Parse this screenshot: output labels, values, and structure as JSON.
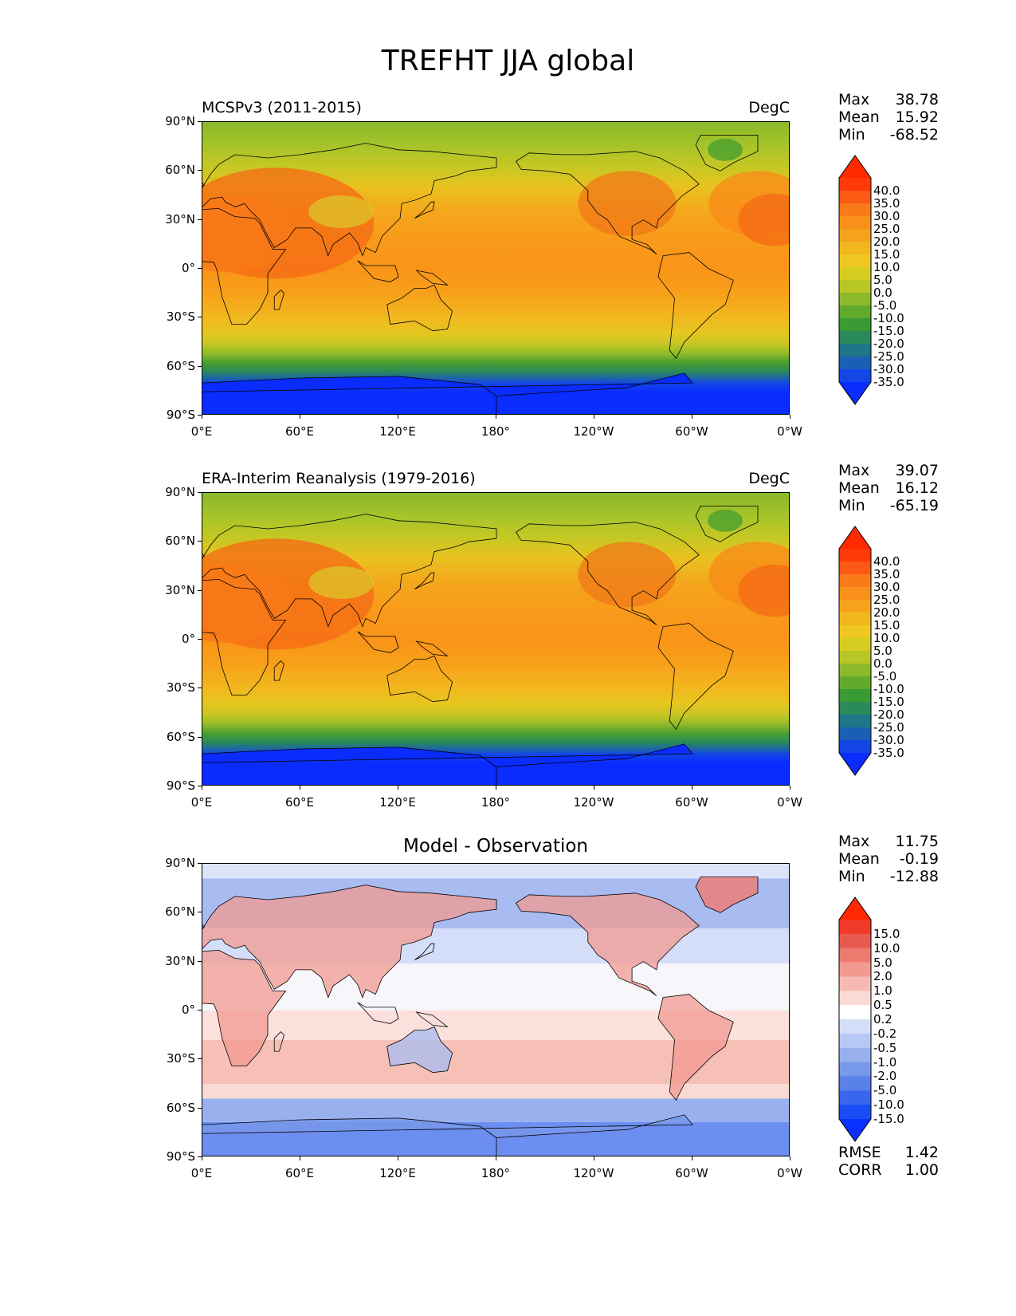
{
  "suptitle": "TREFHT JJA global",
  "xticks": [
    "0°E",
    "60°E",
    "120°E",
    "180°",
    "120°W",
    "60°W",
    "0°W"
  ],
  "yticks": [
    "90°N",
    "60°N",
    "30°N",
    "0°",
    "30°S",
    "60°S",
    "90°S"
  ],
  "panels": [
    {
      "title_left": "MCSPv3 (2011-2015)",
      "title_right": "DegC",
      "title_center": "",
      "stats": [
        {
          "label": "Max",
          "value": "38.78"
        },
        {
          "label": "Mean",
          "value": "15.92"
        },
        {
          "label": "Min",
          "value": "-68.52"
        }
      ],
      "footer": [],
      "colorbar_labels": [
        "40.0",
        "35.0",
        "30.0",
        "25.0",
        "20.0",
        "15.0",
        "10.0",
        "5.0",
        "0.0",
        "-5.0",
        "-10.0",
        "-15.0",
        "-20.0",
        "-25.0",
        "-30.0",
        "-35.0"
      ],
      "colorbar_colors": [
        "#ff2a00",
        "#ff3a0a",
        "#fb5a14",
        "#f97a18",
        "#f9901a",
        "#f5a31c",
        "#f2b61e",
        "#eec820",
        "#d6cc22",
        "#b8c626",
        "#8dba2a",
        "#62aa2c",
        "#3a9a34",
        "#2a8a5a",
        "#1f7688",
        "#1a5fb4",
        "#1446e6",
        "#0a2cff"
      ],
      "map_kind": "absolute"
    },
    {
      "title_left": "ERA-Interim Reanalysis (1979-2016)",
      "title_right": "DegC",
      "title_center": "",
      "stats": [
        {
          "label": "Max",
          "value": "39.07"
        },
        {
          "label": "Mean",
          "value": "16.12"
        },
        {
          "label": "Min",
          "value": "-65.19"
        }
      ],
      "footer": [],
      "colorbar_labels": [
        "40.0",
        "35.0",
        "30.0",
        "25.0",
        "20.0",
        "15.0",
        "10.0",
        "5.0",
        "0.0",
        "-5.0",
        "-10.0",
        "-15.0",
        "-20.0",
        "-25.0",
        "-30.0",
        "-35.0"
      ],
      "colorbar_colors": [
        "#ff2a00",
        "#ff3a0a",
        "#fb5a14",
        "#f97a18",
        "#f9901a",
        "#f5a31c",
        "#f2b61e",
        "#eec820",
        "#d6cc22",
        "#b8c626",
        "#8dba2a",
        "#62aa2c",
        "#3a9a34",
        "#2a8a5a",
        "#1f7688",
        "#1a5fb4",
        "#1446e6",
        "#0a2cff"
      ],
      "map_kind": "absolute"
    },
    {
      "title_left": "",
      "title_right": "",
      "title_center": "Model - Observation",
      "stats": [
        {
          "label": "Max",
          "value": "11.75"
        },
        {
          "label": "Mean",
          "value": "-0.19"
        },
        {
          "label": "Min",
          "value": "-12.88"
        }
      ],
      "footer": [
        {
          "label": "RMSE",
          "value": "1.42"
        },
        {
          "label": "CORR",
          "value": "1.00"
        }
      ],
      "colorbar_labels": [
        "15.0",
        "10.0",
        "5.0",
        "2.0",
        "1.0",
        "0.5",
        "0.2",
        "-0.2",
        "-0.5",
        "-1.0",
        "-2.0",
        "-5.0",
        "-10.0",
        "-15.0"
      ],
      "colorbar_colors": [
        "#ff2a00",
        "#f23a2a",
        "#e85a50",
        "#ee7a70",
        "#f29a90",
        "#f6bab2",
        "#fadad4",
        "#ffffff",
        "#d4def8",
        "#b6c8f4",
        "#98b0ee",
        "#7898ea",
        "#5a80ea",
        "#3a66ee",
        "#1a4cf6",
        "#0a30ff"
      ],
      "map_kind": "difference"
    }
  ],
  "chart_data": [
    {
      "type": "heatmap",
      "title": "MCSPv3 (2011-2015)",
      "units": "DegC",
      "x_range": [
        "0°E",
        "0°W"
      ],
      "y_range": [
        "90°S",
        "90°N"
      ],
      "levels": [
        -35,
        -30,
        -25,
        -20,
        -15,
        -10,
        -5,
        0,
        5,
        10,
        15,
        20,
        25,
        30,
        35,
        40
      ],
      "max": 38.78,
      "mean": 15.92,
      "min": -68.52
    },
    {
      "type": "heatmap",
      "title": "ERA-Interim Reanalysis (1979-2016)",
      "units": "DegC",
      "x_range": [
        "0°E",
        "0°W"
      ],
      "y_range": [
        "90°S",
        "90°N"
      ],
      "levels": [
        -35,
        -30,
        -25,
        -20,
        -15,
        -10,
        -5,
        0,
        5,
        10,
        15,
        20,
        25,
        30,
        35,
        40
      ],
      "max": 39.07,
      "mean": 16.12,
      "min": -65.19
    },
    {
      "type": "heatmap",
      "title": "Model - Observation",
      "x_range": [
        "0°E",
        "0°W"
      ],
      "y_range": [
        "90°S",
        "90°N"
      ],
      "levels": [
        -15,
        -10,
        -5,
        -2,
        -1,
        -0.5,
        -0.2,
        0.2,
        0.5,
        1,
        2,
        5,
        10,
        15
      ],
      "max": 11.75,
      "mean": -0.19,
      "min": -12.88,
      "rmse": 1.42,
      "corr": 1.0
    }
  ]
}
